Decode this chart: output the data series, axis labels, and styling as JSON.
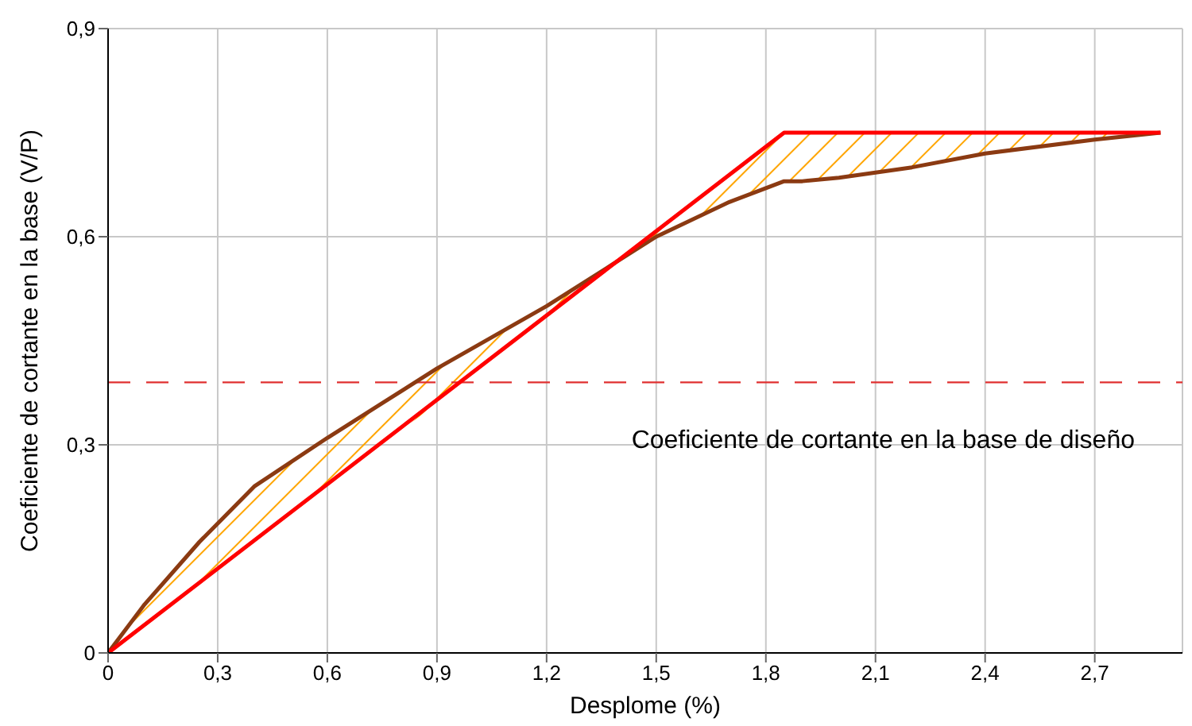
{
  "chart_data": {
    "type": "line",
    "xlabel": "Desplome (%)",
    "ylabel": "Coeficiente de cortante en la base (V/P)",
    "xlim": [
      0,
      2.94
    ],
    "xticks": [
      0,
      {
        "value": 0.3,
        "label": "0,3"
      },
      {
        "value": 0.6,
        "label": "0,6"
      },
      {
        "value": 0.9,
        "label": "0,9"
      },
      {
        "value": 1.2,
        "label": "1,2"
      },
      {
        "value": 1.5,
        "label": "1,5"
      },
      {
        "value": 1.8,
        "label": "1,8"
      },
      {
        "value": 2.1,
        "label": "2,1"
      },
      {
        "value": 2.4,
        "label": "2,4"
      },
      {
        "value": 2.7,
        "label": "2,7"
      }
    ],
    "ylim": [
      0,
      0.9
    ],
    "yticks": [
      0,
      {
        "value": 0.3,
        "label": "0,3"
      },
      {
        "value": 0.6,
        "label": "0,6"
      },
      {
        "value": 0.9,
        "label": "0,9"
      }
    ],
    "grid": true,
    "legend": false,
    "marker": "none",
    "line_style": "solid",
    "series": [
      {
        "color": "#8b3a12",
        "x": [
          0,
          0.1,
          0.25,
          0.4,
          0.6,
          0.9,
          1.2,
          1.38,
          1.5,
          1.7,
          1.8,
          1.85,
          1.9,
          2.0,
          2.2,
          2.4,
          2.7,
          2.88
        ],
        "values": [
          0,
          0.07,
          0.16,
          0.24,
          0.31,
          0.41,
          0.5,
          0.56,
          0.6,
          0.65,
          0.67,
          0.68,
          0.68,
          0.685,
          0.7,
          0.72,
          0.74,
          0.75
        ],
        "lower": [
          0,
          0.04,
          0.1,
          0.16,
          0.24,
          0.36,
          0.49,
          0.56,
          0.6,
          0.65,
          0.67,
          0.68,
          0.68,
          0.685,
          0.7,
          0.72,
          0.74,
          0.75
        ],
        "upper": [
          0,
          0.07,
          0.16,
          0.24,
          0.31,
          0.41,
          0.5,
          0.56,
          0.61,
          0.69,
          0.73,
          0.75,
          0.75,
          0.75,
          0.75,
          0.75,
          0.75,
          0.75
        ]
      },
      {
        "color": "#ff0000",
        "x": [
          0,
          1.85,
          2.88
        ],
        "values": [
          0,
          0.75,
          0.75
        ]
      }
    ],
    "ref_lines": [
      {
        "axis": "y",
        "value": 0.39,
        "label": "Coeficiente de cortante en la base de diseño",
        "color": "#e03030",
        "line_style": "dashed"
      }
    ]
  }
}
